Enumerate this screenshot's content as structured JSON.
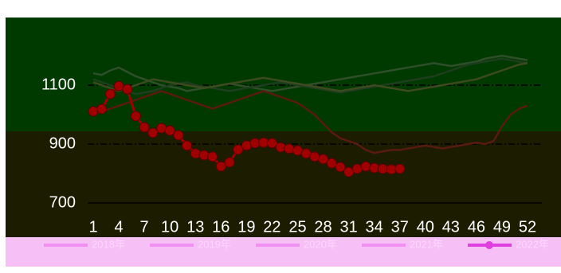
{
  "chart_data": {
    "type": "line",
    "categories": [
      1,
      2,
      3,
      4,
      5,
      6,
      7,
      8,
      9,
      10,
      11,
      12,
      13,
      14,
      15,
      16,
      17,
      18,
      19,
      20,
      21,
      22,
      23,
      24,
      25,
      26,
      27,
      28,
      29,
      30,
      31,
      32,
      33,
      34,
      35,
      36,
      37,
      38,
      39,
      40,
      41,
      42,
      43,
      44,
      45,
      46,
      47,
      48,
      49,
      50,
      51,
      52
    ],
    "ylim": [
      700,
      1300
    ],
    "yticks": [
      700,
      900,
      1100
    ],
    "grid": true,
    "series": [
      {
        "name": "2018年",
        "color": "#2f4f2a",
        "values": [
          1140,
          1135,
          1150,
          1160,
          1145,
          1130,
          1120,
          1110,
          1100,
          1095,
          1090,
          1080,
          1085,
          1090,
          1095,
          1100,
          1105,
          1100,
          1095,
          1090,
          1085,
          1080,
          1085,
          1090,
          1095,
          1100,
          1105,
          1110,
          1115,
          1120,
          1125,
          1130,
          1135,
          1140,
          1145,
          1150,
          1155,
          1160,
          1165,
          1170,
          1175,
          1170,
          1165,
          1170,
          1175,
          1180,
          1190,
          1195,
          1200,
          1195,
          1190,
          1185
        ]
      },
      {
        "name": "2019年",
        "color": "#1f3d1f",
        "values": [
          1120,
          1110,
          1100,
          1090,
          1080,
          1070,
          1075,
          1080,
          1090,
          1100,
          1105,
          1110,
          1100,
          1095,
          1090,
          1085,
          1080,
          1085,
          1090,
          1095,
          1100,
          1105,
          1110,
          1105,
          1100,
          1095,
          1090,
          1085,
          1080,
          1075,
          1080,
          1085,
          1090,
          1095,
          1100,
          1105,
          1110,
          1115,
          1120,
          1125,
          1130,
          1140,
          1150,
          1160,
          1170,
          1175,
          1180,
          1185,
          1190,
          1185,
          1180,
          1175
        ]
      },
      {
        "name": "2020年",
        "color": "#3d4a20",
        "values": [
          1110,
          1100,
          1090,
          1080,
          1090,
          1100,
          1110,
          1120,
          1115,
          1110,
          1105,
          1100,
          1095,
          1090,
          1095,
          1100,
          1105,
          1110,
          1115,
          1120,
          1125,
          1120,
          1115,
          1110,
          1105,
          1100,
          1095,
          1090,
          1085,
          1080,
          1085,
          1090,
          1095,
          1100,
          1095,
          1090,
          1085,
          1080,
          1085,
          1090,
          1095,
          1100,
          1105,
          1110,
          1115,
          1120,
          1130,
          1140,
          1150,
          1160,
          1170,
          1175
        ]
      },
      {
        "name": "2021年",
        "color": "#5a1a10",
        "values": [
          1000,
          1010,
          1020,
          1030,
          1040,
          1050,
          1060,
          1070,
          1080,
          1070,
          1060,
          1050,
          1040,
          1030,
          1020,
          1030,
          1040,
          1050,
          1060,
          1070,
          1080,
          1070,
          1060,
          1050,
          1040,
          1020,
          1000,
          970,
          940,
          920,
          910,
          900,
          880,
          870,
          875,
          880,
          880,
          885,
          890,
          895,
          890,
          885,
          890,
          895,
          900,
          905,
          900,
          910,
          960,
          1000,
          1020,
          1030
        ]
      },
      {
        "name": "2022年",
        "color": "#a00000",
        "marker": true,
        "values": [
          1011,
          1019,
          1070,
          1097,
          1086,
          995,
          957,
          938,
          954,
          946,
          930,
          895,
          868,
          862,
          857,
          824,
          838,
          881,
          895,
          903,
          905,
          903,
          889,
          884,
          878,
          868,
          857,
          849,
          835,
          822,
          805,
          816,
          824,
          819,
          816,
          814,
          816,
          null,
          null,
          null,
          null,
          null,
          null,
          null,
          null,
          null,
          null,
          null,
          null,
          null,
          null,
          null
        ]
      }
    ]
  }
}
